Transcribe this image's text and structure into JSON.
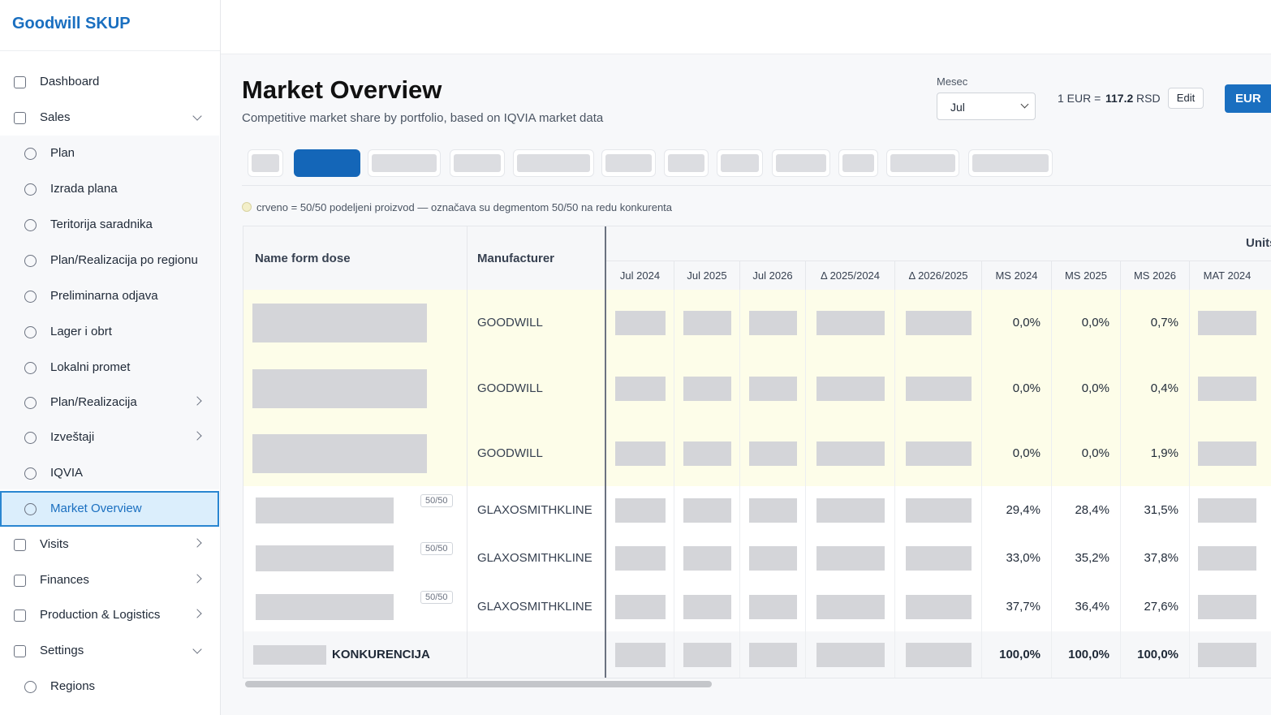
{
  "brand": "Goodwill SKUP",
  "nav": [
    {
      "label": "Dashboard",
      "level": 1
    },
    {
      "label": "Sales",
      "level": 1,
      "chevron": "down"
    },
    {
      "label": "Plan",
      "level": 2
    },
    {
      "label": "Izrada plana",
      "level": 2
    },
    {
      "label": "Teritorija saradnika",
      "level": 2
    },
    {
      "label": "Plan/Realizacija po regionu",
      "level": 2
    },
    {
      "label": "Preliminarna odjava",
      "level": 2
    },
    {
      "label": "Lager i obrt",
      "level": 2
    },
    {
      "label": "Lokalni promet",
      "level": 2
    },
    {
      "label": "Plan/Realizacija",
      "level": 2,
      "chevron": "right"
    },
    {
      "label": "Izveštaji",
      "level": 2,
      "chevron": "right"
    },
    {
      "label": "IQVIA",
      "level": 2
    },
    {
      "label": "Market Overview",
      "level": 2,
      "active": true
    },
    {
      "label": "Visits",
      "level": 1,
      "chevron": "right"
    },
    {
      "label": "Finances",
      "level": 1,
      "chevron": "right"
    },
    {
      "label": "Production & Logistics",
      "level": 1,
      "chevron": "right"
    },
    {
      "label": "Settings",
      "level": 1,
      "chevron": "down"
    },
    {
      "label": "Regions",
      "level": 2
    }
  ],
  "header": {
    "title": "Market Overview",
    "subtitle": "Competitive market share by portfolio, based on IQVIA market data",
    "month_label": "Mesec",
    "month": "Jul",
    "rate_prefix": "1 EUR =",
    "rate": "117.2",
    "rate_unit": "RSD",
    "edit": "Edit",
    "currency": "EUR"
  },
  "note": "crveno = 50/50 podeljeni proizvod — označava su degmentom 50/50 na redu konkurenta",
  "table": {
    "name_header": "Name form dose",
    "manufacturer_header": "Manufacturer",
    "group_header": "Units",
    "columns": [
      "Jul 2024",
      "Jul 2025",
      "Jul 2026",
      "Δ 2025/2024",
      "Δ 2026/2025",
      "MS 2024",
      "MS 2025",
      "MS 2026",
      "MAT 2024"
    ],
    "rows": [
      {
        "manufacturer": "GOODWILL",
        "ms": [
          "0,0%",
          "0,0%",
          "0,7%"
        ]
      },
      {
        "manufacturer": "GOODWILL",
        "ms": [
          "0,0%",
          "0,0%",
          "0,4%"
        ]
      },
      {
        "manufacturer": "GOODWILL",
        "ms": [
          "0,0%",
          "0,0%",
          "1,9%"
        ]
      },
      {
        "badge": "50/50",
        "manufacturer": "GLAXOSMITHKLINE",
        "ms": [
          "29,4%",
          "28,4%",
          "31,5%"
        ]
      },
      {
        "badge": "50/50",
        "manufacturer": "GLAXOSMITHKLINE",
        "ms": [
          "33,0%",
          "35,2%",
          "37,8%"
        ]
      },
      {
        "badge": "50/50",
        "manufacturer": "GLAXOSMITHKLINE",
        "ms": [
          "37,7%",
          "36,4%",
          "27,6%"
        ]
      }
    ],
    "total": {
      "label": "KONKURENCIJA",
      "ms": [
        "100,0%",
        "100,0%",
        "100,0%"
      ]
    }
  }
}
